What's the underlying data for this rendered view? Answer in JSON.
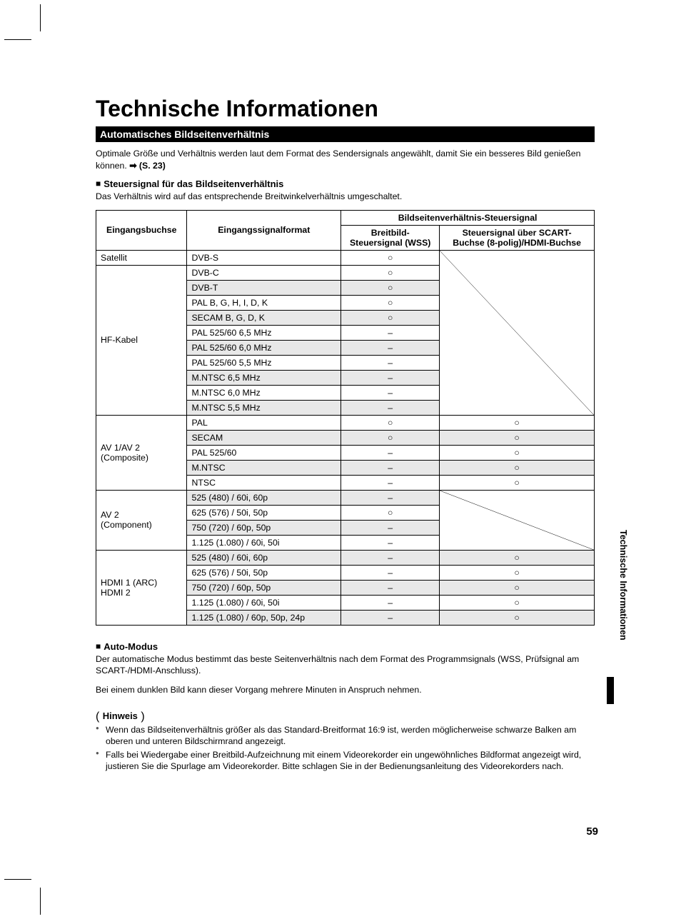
{
  "page_number": "59",
  "side_tab": "Technische Informationen",
  "title": "Technische Informationen",
  "section_bar": "Automatisches Bildseitenverhältnis",
  "intro": {
    "text": "Optimale Größe und Verhältnis werden laut dem Format des Sendersignals angewählt, damit Sie ein besseres Bild genießen können. ",
    "arrow": "➡",
    "ref": "(S. 23)"
  },
  "sub1": {
    "heading": "Steuersignal für das Bildseitenverhältnis",
    "text": "Das Verhältnis wird auf das entsprechende Breitwinkelverhältnis umgeschaltet."
  },
  "table": {
    "head": {
      "h_input": "Eingangsbuchse",
      "h_format": "Eingangssignalformat",
      "h_group": "Bildseitenverhältnis-Steuersignal",
      "h_wss": "Breitbild-\nSteuersignal (WSS)",
      "h_scart": "Steuersignal über SCART-\nBuchse (8-polig)/HDMI-Buchse"
    },
    "groups": [
      {
        "label": "Satellit",
        "diag_scart": true,
        "diag_span": 1,
        "rows": [
          {
            "format": "DVB-S",
            "wss": "○",
            "scart": null,
            "shade": false
          }
        ]
      },
      {
        "label": "HF-Kabel",
        "diag_scart": true,
        "diag_span": 9,
        "continues_diag": true,
        "rows": [
          {
            "format": "DVB-C",
            "wss": "○",
            "scart": null,
            "shade": false
          },
          {
            "format": "DVB-T",
            "wss": "○",
            "scart": null,
            "shade": true
          },
          {
            "format": "PAL B, G, H, I, D, K",
            "wss": "○",
            "scart": null,
            "shade": false
          },
          {
            "format": "SECAM B, G, D, K",
            "wss": "○",
            "scart": null,
            "shade": true
          },
          {
            "format": "PAL 525/60 6,5 MHz",
            "wss": "–",
            "scart": null,
            "shade": false
          },
          {
            "format": "PAL 525/60 6,0 MHz",
            "wss": "–",
            "scart": null,
            "shade": true
          },
          {
            "format": "PAL 525/60 5,5 MHz",
            "wss": "–",
            "scart": null,
            "shade": false
          },
          {
            "format": "M.NTSC 6,5 MHz",
            "wss": "–",
            "scart": null,
            "shade": true
          },
          {
            "format": "M.NTSC 6,0 MHz",
            "wss": "–",
            "scart": null,
            "shade": false
          },
          {
            "format": "M.NTSC 5,5 MHz",
            "wss": "–",
            "scart": null,
            "shade": true
          }
        ]
      },
      {
        "label": "AV 1/AV 2\n(Composite)",
        "diag_scart": false,
        "rows": [
          {
            "format": "PAL",
            "wss": "○",
            "scart": "○",
            "shade": false
          },
          {
            "format": "SECAM",
            "wss": "○",
            "scart": "○",
            "shade": true
          },
          {
            "format": "PAL 525/60",
            "wss": "–",
            "scart": "○",
            "shade": false
          },
          {
            "format": "M.NTSC",
            "wss": "–",
            "scart": "○",
            "shade": true
          },
          {
            "format": "NTSC",
            "wss": "–",
            "scart": "○",
            "shade": false
          }
        ]
      },
      {
        "label": "AV 2\n(Component)",
        "diag_scart": true,
        "diag_span": 4,
        "rows": [
          {
            "format": "525 (480) / 60i, 60p",
            "wss": "–",
            "scart": null,
            "shade": true
          },
          {
            "format": "625 (576) / 50i, 50p",
            "wss": "○",
            "scart": null,
            "shade": false
          },
          {
            "format": "750 (720) / 60p, 50p",
            "wss": "–",
            "scart": null,
            "shade": true
          },
          {
            "format": "1.125 (1.080) / 60i, 50i",
            "wss": "–",
            "scart": null,
            "shade": false
          }
        ]
      },
      {
        "label": "HDMI 1 (ARC)\nHDMI 2",
        "diag_scart": false,
        "rows": [
          {
            "format": "525 (480) / 60i, 60p",
            "wss": "–",
            "scart": "○",
            "shade": true
          },
          {
            "format": "625 (576) / 50i, 50p",
            "wss": "–",
            "scart": "○",
            "shade": false
          },
          {
            "format": "750 (720) / 60p, 50p",
            "wss": "–",
            "scart": "○",
            "shade": true
          },
          {
            "format": "1.125 (1.080) / 60i, 50i",
            "wss": "–",
            "scart": "○",
            "shade": false
          },
          {
            "format": "1.125 (1.080) / 60p, 50p, 24p",
            "wss": "–",
            "scart": "○",
            "shade": true
          }
        ]
      }
    ]
  },
  "sub2": {
    "heading": "Auto-Modus",
    "p1": "Der automatische Modus bestimmt das beste Seitenverhältnis nach dem Format des Programmsignals (WSS, Prüfsignal am SCART-/HDMI-Anschluss).",
    "p2": "Bei einem dunklen Bild kann dieser Vorgang mehrere Minuten in Anspruch nehmen."
  },
  "hinweis": {
    "label": "Hinweis",
    "bullets": [
      "Wenn das Bildseitenverhältnis größer als das Standard-Breitformat 16:9 ist, werden möglicherweise schwarze Balken am oberen und unteren Bildschirmrand angezeigt.",
      "Falls bei Wiedergabe einer Breitbild-Aufzeichnung mit einem Videorekorder ein ungewöhnliches Bildformat angezeigt wird, justieren Sie die Spurlage am Videorekorder. Bitte schlagen Sie in der Bedienungsanleitung des Videorekorders nach."
    ]
  },
  "symbols": {
    "circle": "○",
    "dash": "–",
    "square": "■"
  },
  "colors": {
    "bg": "#ffffff",
    "text": "#000000",
    "shade": "#e8e8e8",
    "bullet": "#555555"
  }
}
